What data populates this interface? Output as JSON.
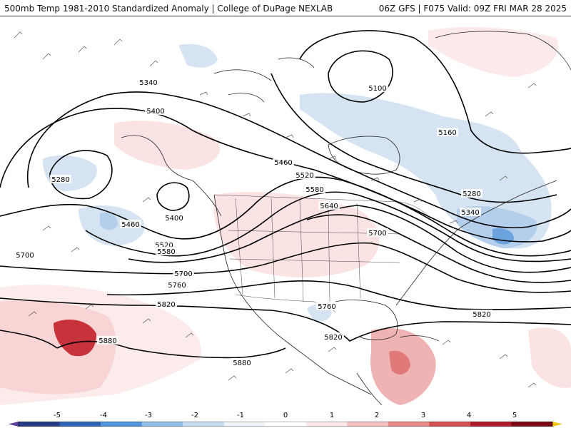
{
  "header": {
    "title_left": "500mb Temp 1981-2010 Standardized Anomaly | College of DuPage NEXLAB",
    "title_right": "06Z GFS | F075 Valid: 09Z FRI MAR 28 2025"
  },
  "contour_labels": [
    "5100",
    "5160",
    "5280",
    "5280",
    "5340",
    "5340",
    "5400",
    "5400",
    "5460",
    "5460",
    "5520",
    "5520",
    "5580",
    "5580",
    "5640",
    "5700",
    "5700",
    "5700",
    "5760",
    "5760",
    "5820",
    "5820",
    "5820",
    "5880",
    "5880"
  ],
  "legend": {
    "ticks": [
      "-5",
      "-4",
      "-3",
      "-2",
      "-1",
      "0",
      "1",
      "2",
      "3",
      "4",
      "5"
    ],
    "colors": [
      "#5b3b9c",
      "#273c87",
      "#2f63b4",
      "#4f94d9",
      "#8fbde8",
      "#c6daf0",
      "#eef3fa",
      "#ffffff",
      "#fce8e8",
      "#f4c0c0",
      "#e78a8a",
      "#d45050",
      "#b01c2c",
      "#7c0a16",
      "#f2c400"
    ]
  },
  "colors": {
    "cold_light": "#d6e3f2",
    "cold_mid": "#b4cfec",
    "cold_strong": "#6aa3dd",
    "warm_light": "#fbe3e3",
    "warm_mid": "#f0b3b3",
    "warm_strong": "#e07a7a",
    "warm_core": "#c8323a",
    "contour": "#000000",
    "coast": "#222222"
  }
}
